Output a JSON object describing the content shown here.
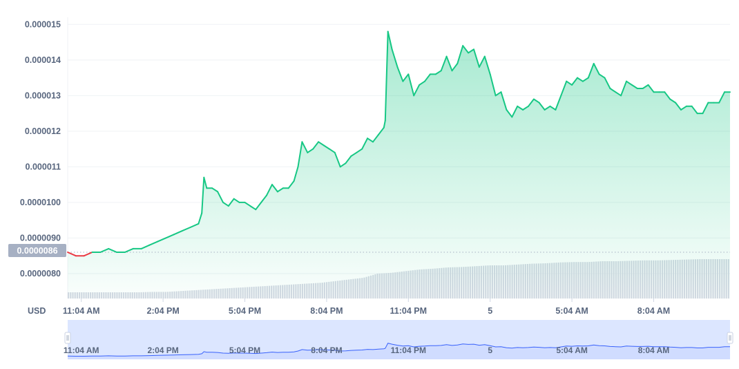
{
  "currency_label": "USD",
  "current_price_label": "0.0000086",
  "colors": {
    "up_line": "#16c784",
    "down_line": "#ea3943",
    "area_top": "#16c784",
    "volume_bar": "#d4d9e3",
    "navigator_line": "#3861fb",
    "navigator_fill": "#dce6ff",
    "grid": "#eff2f5",
    "badge": "#a6b0c3"
  },
  "chart_data": {
    "type": "area",
    "yticks": [
      "0.000015",
      "0.000014",
      "0.000013",
      "0.000012",
      "0.000011",
      "0.0000100",
      "0.0000090",
      "0.0000080"
    ],
    "ytick_values": [
      1.5e-05,
      1.4e-05,
      1.3e-05,
      1.2e-05,
      1.1e-05,
      1e-05,
      9e-06,
      8e-06
    ],
    "ylim": [
      7.3e-06,
      1.52e-05
    ],
    "reference_price": 8.6e-06,
    "xticks": [
      {
        "label": "11:04 AM",
        "t": 0.5,
        "bold": false
      },
      {
        "label": "2:04 PM",
        "t": 3.5,
        "bold": false
      },
      {
        "label": "5:04 PM",
        "t": 6.5,
        "bold": false
      },
      {
        "label": "8:04 PM",
        "t": 9.5,
        "bold": false
      },
      {
        "label": "11:04 PM",
        "t": 12.5,
        "bold": false
      },
      {
        "label": "5",
        "t": 15.5,
        "bold": true
      },
      {
        "label": "5:04 AM",
        "t": 18.5,
        "bold": false
      },
      {
        "label": "8:04 AM",
        "t": 21.5,
        "bold": false
      }
    ],
    "xlim": [
      0.0,
      24.3
    ],
    "series": [
      {
        "type": "line",
        "x": [
          0.0,
          0.3,
          0.6,
          0.9,
          1.2,
          1.5,
          1.8,
          2.1,
          2.4,
          2.7,
          3.0,
          3.3,
          3.6,
          3.9,
          4.2,
          4.5,
          4.8,
          4.92,
          5.0,
          5.1,
          5.3,
          5.5,
          5.7,
          5.9,
          6.1,
          6.3,
          6.5,
          6.7,
          6.9,
          7.1,
          7.3,
          7.5,
          7.7,
          7.9,
          8.1,
          8.3,
          8.45,
          8.6,
          8.8,
          9.0,
          9.2,
          9.4,
          9.6,
          9.8,
          10.0,
          10.2,
          10.4,
          10.6,
          10.8,
          11.0,
          11.2,
          11.4,
          11.6,
          11.65,
          11.75,
          11.9,
          12.1,
          12.3,
          12.5,
          12.7,
          12.9,
          13.1,
          13.3,
          13.5,
          13.7,
          13.9,
          14.1,
          14.3,
          14.5,
          14.7,
          14.9,
          15.1,
          15.3,
          15.5,
          15.7,
          15.9,
          16.1,
          16.3,
          16.5,
          16.7,
          16.9,
          17.1,
          17.3,
          17.5,
          17.7,
          17.9,
          18.1,
          18.3,
          18.5,
          18.7,
          18.9,
          19.1,
          19.3,
          19.5,
          19.7,
          19.9,
          20.1,
          20.3,
          20.5,
          20.7,
          20.9,
          21.1,
          21.3,
          21.5,
          21.7,
          21.9,
          22.1,
          22.3,
          22.5,
          22.7,
          22.9,
          23.1,
          23.3,
          23.5,
          23.7,
          23.9,
          24.1,
          24.3
        ],
        "values": [
          8.6e-06,
          8.5e-06,
          8.5e-06,
          8.6e-06,
          8.6e-06,
          8.7e-06,
          8.6e-06,
          8.6e-06,
          8.7e-06,
          8.7e-06,
          8.8e-06,
          8.9e-06,
          9e-06,
          9.1e-06,
          9.2e-06,
          9.3e-06,
          9.4e-06,
          9.7e-06,
          1.07e-05,
          1.04e-05,
          1.04e-05,
          1.03e-05,
          1e-05,
          9.9e-06,
          1.01e-05,
          1e-05,
          1e-05,
          9.9e-06,
          9.8e-06,
          1e-05,
          1.02e-05,
          1.05e-05,
          1.03e-05,
          1.04e-05,
          1.04e-05,
          1.06e-05,
          1.1e-05,
          1.17e-05,
          1.14e-05,
          1.15e-05,
          1.17e-05,
          1.16e-05,
          1.15e-05,
          1.14e-05,
          1.1e-05,
          1.11e-05,
          1.13e-05,
          1.14e-05,
          1.15e-05,
          1.18e-05,
          1.17e-05,
          1.19e-05,
          1.21e-05,
          1.23e-05,
          1.48e-05,
          1.43e-05,
          1.38e-05,
          1.34e-05,
          1.36e-05,
          1.3e-05,
          1.33e-05,
          1.34e-05,
          1.36e-05,
          1.36e-05,
          1.37e-05,
          1.41e-05,
          1.37e-05,
          1.39e-05,
          1.44e-05,
          1.42e-05,
          1.43e-05,
          1.38e-05,
          1.41e-05,
          1.36e-05,
          1.3e-05,
          1.31e-05,
          1.26e-05,
          1.24e-05,
          1.27e-05,
          1.26e-05,
          1.27e-05,
          1.29e-05,
          1.28e-05,
          1.26e-05,
          1.27e-05,
          1.26e-05,
          1.3e-05,
          1.34e-05,
          1.33e-05,
          1.35e-05,
          1.34e-05,
          1.35e-05,
          1.39e-05,
          1.36e-05,
          1.35e-05,
          1.32e-05,
          1.31e-05,
          1.3e-05,
          1.34e-05,
          1.33e-05,
          1.32e-05,
          1.32e-05,
          1.33e-05,
          1.31e-05,
          1.31e-05,
          1.31e-05,
          1.29e-05,
          1.28e-05,
          1.26e-05,
          1.27e-05,
          1.27e-05,
          1.25e-05,
          1.25e-05,
          1.28e-05,
          1.28e-05,
          1.28e-05,
          1.31e-05,
          1.31e-05
        ]
      }
    ],
    "volume_relative": [
      0.15,
      0.15,
      0.15,
      0.15,
      0.15,
      0.15,
      0.16,
      0.16,
      0.18,
      0.2,
      0.22,
      0.24,
      0.26,
      0.28,
      0.3,
      0.32,
      0.34,
      0.36,
      0.38,
      0.42,
      0.46,
      0.5,
      0.6,
      0.62,
      0.66,
      0.7,
      0.72,
      0.75,
      0.76,
      0.78,
      0.8,
      0.8,
      0.82,
      0.84,
      0.85,
      0.87,
      0.88,
      0.88,
      0.9,
      0.9,
      0.91,
      0.92,
      0.92,
      0.93,
      0.94,
      0.95,
      0.95,
      0.95
    ],
    "navigator": {
      "xticks": [
        "11:04 AM",
        "2:04 PM",
        "5:04 PM",
        "8:04 PM",
        "11:04 PM",
        "5",
        "5:04 AM",
        "8:04 AM"
      ]
    }
  }
}
